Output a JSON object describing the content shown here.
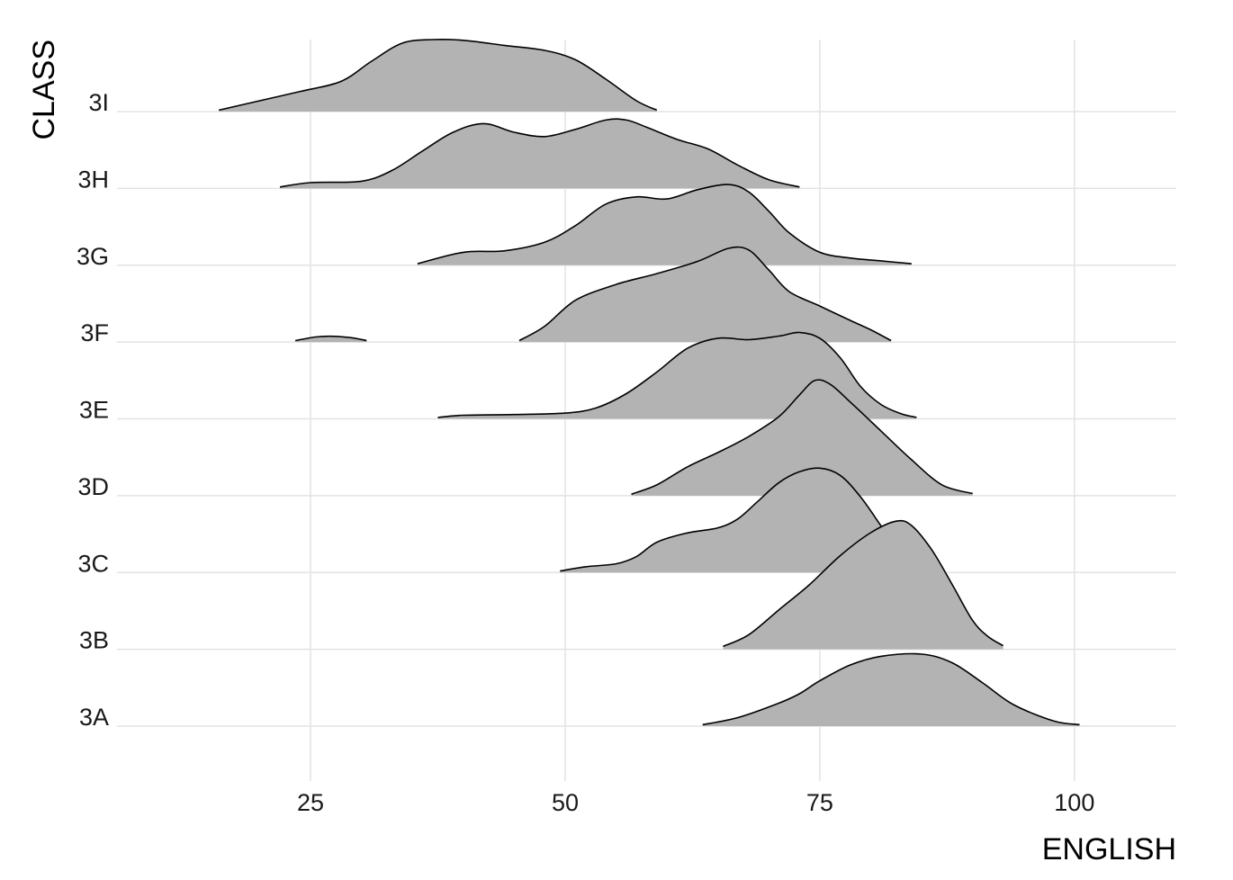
{
  "chart_data": {
    "type": "ridgeline",
    "xlabel": "ENGLISH",
    "ylabel": "CLASS",
    "xlim": [
      6,
      110
    ],
    "x_ticks": [
      25,
      50,
      75,
      100
    ],
    "x_tick_labels": [
      "25",
      "50",
      "75",
      "100"
    ],
    "categories": [
      "3A",
      "3B",
      "3C",
      "3D",
      "3E",
      "3F",
      "3G",
      "3H",
      "3I"
    ],
    "grid": true,
    "fill_color": "#b3b3b3",
    "line_color": "#000000",
    "series": [
      {
        "category": "3A",
        "segments": [
          [
            [
              63.5,
              0.02
            ],
            [
              67,
              0.12
            ],
            [
              71,
              0.32
            ],
            [
              73,
              0.45
            ],
            [
              75,
              0.63
            ],
            [
              78,
              0.85
            ],
            [
              81,
              0.97
            ],
            [
              85,
              1.0
            ],
            [
              88,
              0.88
            ],
            [
              91,
              0.6
            ],
            [
              94,
              0.3
            ],
            [
              98,
              0.07
            ],
            [
              100.5,
              0.02
            ]
          ]
        ]
      },
      {
        "category": "3B",
        "segments": [
          [
            [
              65.5,
              0.04
            ],
            [
              68,
              0.2
            ],
            [
              71,
              0.55
            ],
            [
              74,
              0.9
            ],
            [
              77,
              1.3
            ],
            [
              80,
              1.62
            ],
            [
              82.5,
              1.78
            ],
            [
              84,
              1.72
            ],
            [
              86,
              1.38
            ],
            [
              88,
              0.9
            ],
            [
              90,
              0.4
            ],
            [
              91.5,
              0.18
            ],
            [
              93,
              0.05
            ]
          ]
        ]
      },
      {
        "category": "3C",
        "segments": [
          [
            [
              49.5,
              0.02
            ],
            [
              52,
              0.08
            ],
            [
              55,
              0.12
            ],
            [
              57,
              0.22
            ],
            [
              59,
              0.42
            ],
            [
              62,
              0.55
            ],
            [
              65,
              0.62
            ],
            [
              67,
              0.75
            ],
            [
              69,
              1.0
            ],
            [
              71,
              1.25
            ],
            [
              73,
              1.4
            ],
            [
              75,
              1.45
            ],
            [
              77,
              1.35
            ],
            [
              79,
              1.05
            ],
            [
              81,
              0.65
            ],
            [
              83,
              0.25
            ],
            [
              85,
              0.08
            ],
            [
              87,
              0.02
            ]
          ]
        ]
      },
      {
        "category": "3D",
        "segments": [
          [
            [
              56.5,
              0.02
            ],
            [
              59,
              0.15
            ],
            [
              62,
              0.4
            ],
            [
              65,
              0.6
            ],
            [
              68,
              0.82
            ],
            [
              71,
              1.1
            ],
            [
              73,
              1.4
            ],
            [
              74.5,
              1.6
            ],
            [
              76,
              1.55
            ],
            [
              78,
              1.3
            ],
            [
              81,
              0.9
            ],
            [
              84,
              0.5
            ],
            [
              87,
              0.15
            ],
            [
              90,
              0.03
            ]
          ]
        ]
      },
      {
        "category": "3E",
        "segments": [
          [
            [
              37.5,
              0.02
            ],
            [
              40,
              0.05
            ],
            [
              45,
              0.06
            ],
            [
              50,
              0.08
            ],
            [
              53,
              0.15
            ],
            [
              56,
              0.35
            ],
            [
              59,
              0.65
            ],
            [
              62,
              0.98
            ],
            [
              65,
              1.12
            ],
            [
              68,
              1.1
            ],
            [
              71,
              1.15
            ],
            [
              73,
              1.2
            ],
            [
              75,
              1.12
            ],
            [
              77,
              0.85
            ],
            [
              79,
              0.45
            ],
            [
              81,
              0.2
            ],
            [
              83,
              0.07
            ],
            [
              84.5,
              0.02
            ]
          ]
        ]
      },
      {
        "category": "3F",
        "segments": [
          [
            [
              23.5,
              0.02
            ],
            [
              25.5,
              0.07
            ],
            [
              27,
              0.08
            ],
            [
              29,
              0.06
            ],
            [
              30.5,
              0.02
            ]
          ],
          [
            [
              45.5,
              0.02
            ],
            [
              48,
              0.22
            ],
            [
              51,
              0.58
            ],
            [
              55,
              0.8
            ],
            [
              59,
              0.95
            ],
            [
              63,
              1.12
            ],
            [
              66,
              1.3
            ],
            [
              68,
              1.28
            ],
            [
              70,
              1.0
            ],
            [
              72,
              0.7
            ],
            [
              75,
              0.5
            ],
            [
              78,
              0.3
            ],
            [
              80,
              0.17
            ],
            [
              82,
              0.02
            ]
          ]
        ]
      },
      {
        "category": "3G",
        "segments": [
          [
            [
              35.5,
              0.02
            ],
            [
              40,
              0.18
            ],
            [
              44,
              0.2
            ],
            [
              48,
              0.32
            ],
            [
              51,
              0.55
            ],
            [
              54,
              0.85
            ],
            [
              57,
              0.95
            ],
            [
              60,
              0.92
            ],
            [
              63,
              1.05
            ],
            [
              66,
              1.12
            ],
            [
              68,
              1.02
            ],
            [
              70,
              0.75
            ],
            [
              72,
              0.45
            ],
            [
              75,
              0.18
            ],
            [
              78,
              0.1
            ],
            [
              81,
              0.06
            ],
            [
              84,
              0.02
            ]
          ]
        ]
      },
      {
        "category": "3H",
        "segments": [
          [
            [
              22,
              0.02
            ],
            [
              25,
              0.08
            ],
            [
              30,
              0.1
            ],
            [
              33,
              0.25
            ],
            [
              36,
              0.52
            ],
            [
              39,
              0.78
            ],
            [
              42,
              0.9
            ],
            [
              45,
              0.78
            ],
            [
              48,
              0.72
            ],
            [
              51,
              0.82
            ],
            [
              54,
              0.95
            ],
            [
              56,
              0.95
            ],
            [
              58,
              0.85
            ],
            [
              61,
              0.68
            ],
            [
              64,
              0.55
            ],
            [
              67,
              0.32
            ],
            [
              70,
              0.12
            ],
            [
              73,
              0.02
            ]
          ]
        ]
      },
      {
        "category": "3I",
        "segments": [
          [
            [
              16,
              0.02
            ],
            [
              20,
              0.15
            ],
            [
              24,
              0.28
            ],
            [
              28,
              0.42
            ],
            [
              31,
              0.7
            ],
            [
              34,
              0.95
            ],
            [
              37,
              1.0
            ],
            [
              40,
              0.99
            ],
            [
              44,
              0.92
            ],
            [
              48,
              0.85
            ],
            [
              51,
              0.72
            ],
            [
              54,
              0.45
            ],
            [
              57,
              0.15
            ],
            [
              59,
              0.02
            ]
          ]
        ]
      }
    ]
  }
}
